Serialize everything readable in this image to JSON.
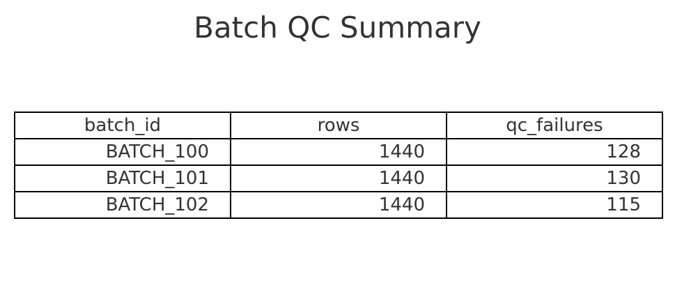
{
  "chart_data": {
    "type": "table",
    "title": "Batch QC Summary",
    "columns": [
      "batch_id",
      "rows",
      "qc_failures"
    ],
    "rows": [
      [
        "BATCH_100",
        "1440",
        "128"
      ],
      [
        "BATCH_101",
        "1440",
        "130"
      ],
      [
        "BATCH_102",
        "1440",
        "115"
      ]
    ]
  }
}
